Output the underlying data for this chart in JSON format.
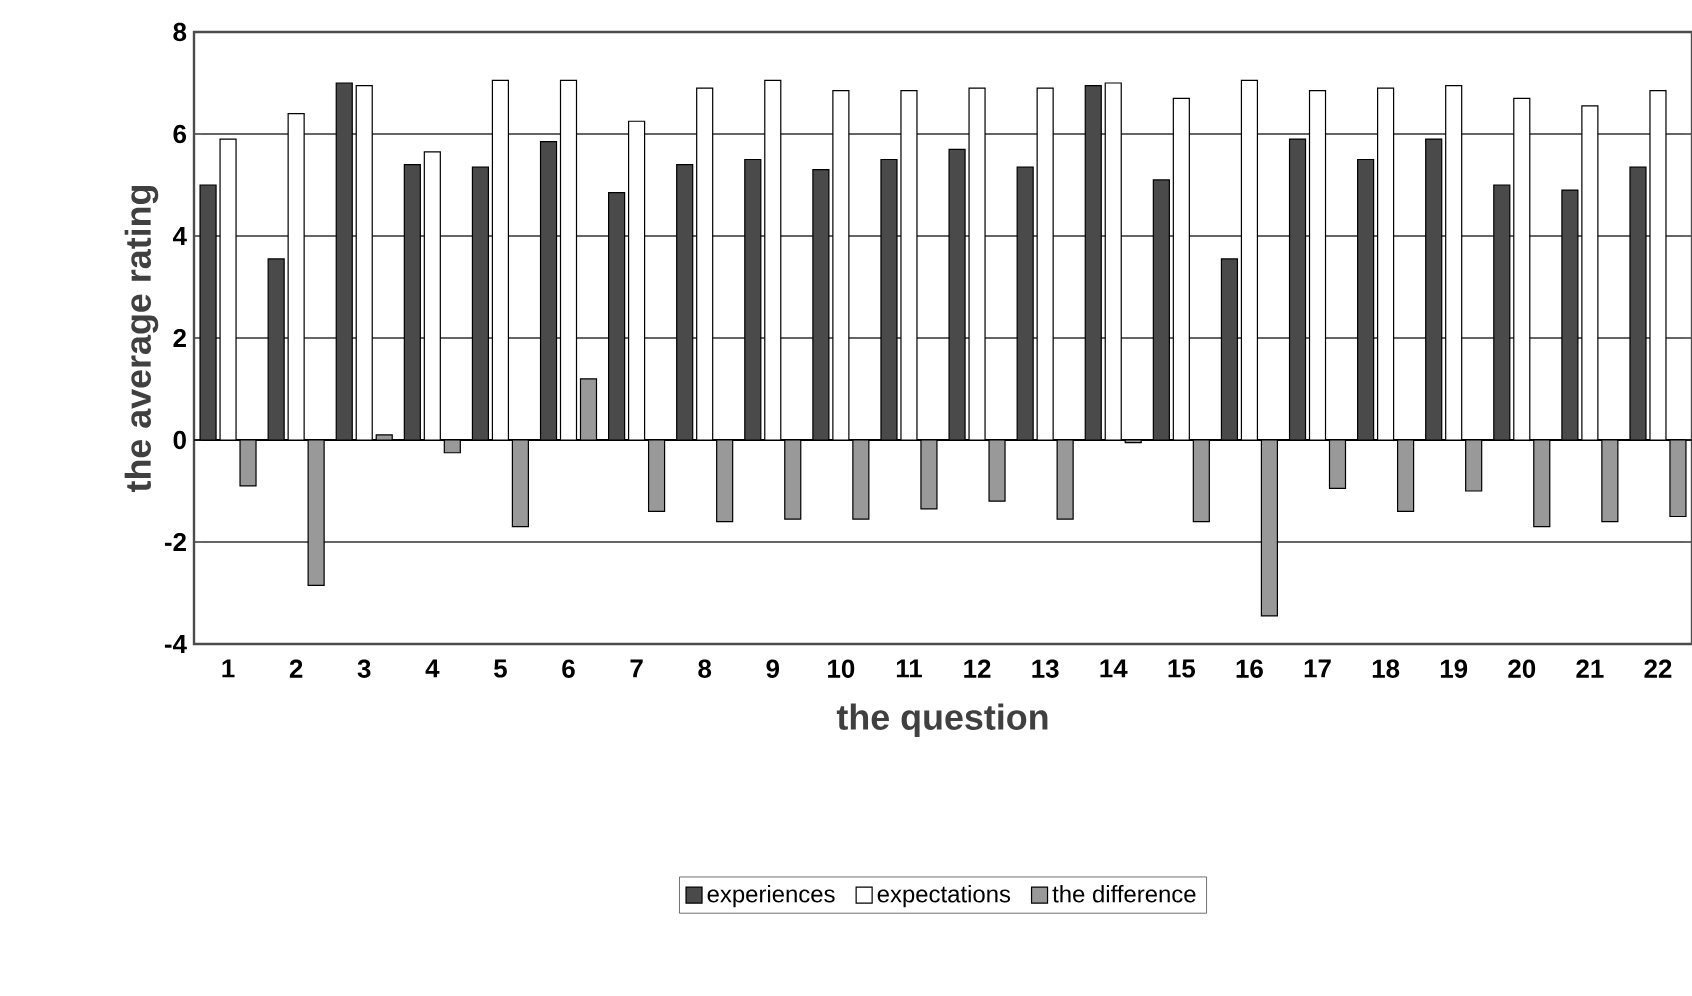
{
  "chart_data": {
    "type": "bar",
    "xlabel": "the question",
    "ylabel": "the average rating",
    "categories": [
      "1",
      "2",
      "3",
      "4",
      "5",
      "6",
      "7",
      "8",
      "9",
      "10",
      "11",
      "12",
      "13",
      "14",
      "15",
      "16",
      "17",
      "18",
      "19",
      "20",
      "21",
      "22"
    ],
    "series": [
      {
        "name": "experiences",
        "color": "#4a4a4a",
        "values": [
          5.0,
          3.55,
          7.0,
          5.4,
          5.35,
          5.85,
          4.85,
          5.4,
          5.5,
          5.3,
          5.5,
          5.7,
          5.35,
          6.95,
          5.1,
          3.55,
          5.9,
          5.5,
          5.9,
          5.0,
          4.9,
          5.35
        ]
      },
      {
        "name": "expectations",
        "color": "#ffffff",
        "values": [
          5.9,
          6.4,
          6.95,
          5.65,
          7.05,
          7.05,
          6.25,
          6.9,
          7.05,
          6.85,
          6.85,
          6.9,
          6.9,
          7.0,
          6.7,
          7.05,
          6.85,
          6.9,
          6.95,
          6.7,
          6.55,
          6.85
        ]
      },
      {
        "name": "the difference",
        "color": "#999999",
        "values": [
          -0.9,
          -2.85,
          0.1,
          -0.25,
          -1.7,
          1.2,
          -1.4,
          -1.6,
          -1.55,
          -1.55,
          -1.35,
          -1.2,
          -1.55,
          -0.05,
          -1.6,
          -3.45,
          -0.95,
          -1.4,
          -1.0,
          -1.7,
          -1.6,
          -1.5
        ]
      }
    ],
    "ylim": [
      -4,
      8
    ],
    "yticks": [
      -4,
      -2,
      0,
      2,
      4,
      6,
      8
    ],
    "grid": "y",
    "legend": "bottom"
  }
}
